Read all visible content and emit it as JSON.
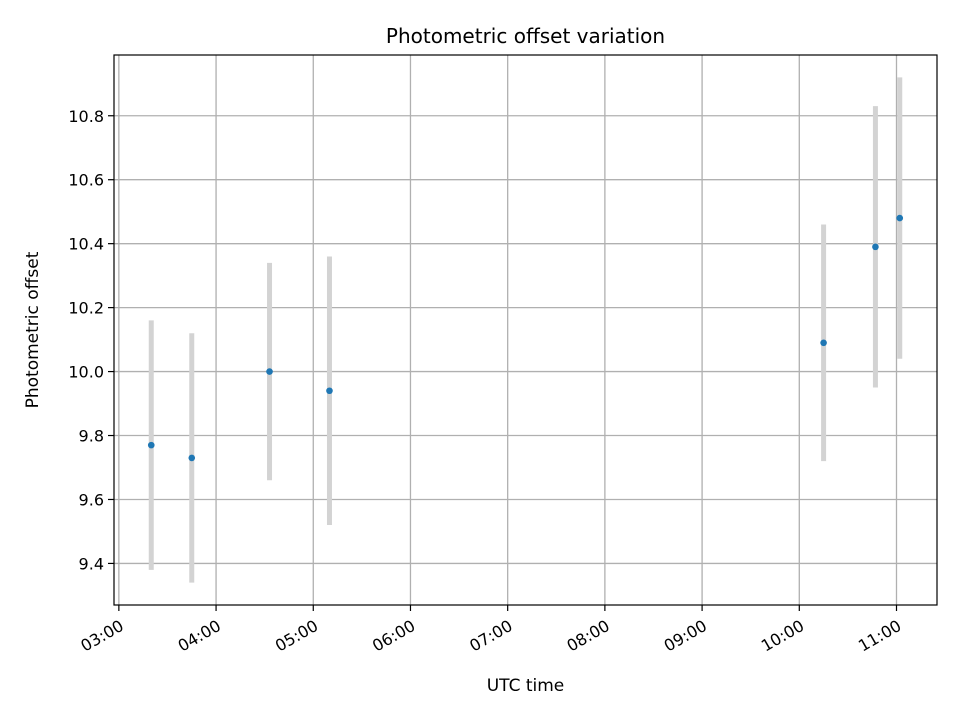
{
  "chart_data": {
    "type": "scatter",
    "title": "Photometric offset variation",
    "xlabel": "UTC time",
    "ylabel": "Photometric offset",
    "x_ticks": [
      "03:00",
      "04:00",
      "05:00",
      "06:00",
      "07:00",
      "08:00",
      "09:00",
      "10:00",
      "11:00"
    ],
    "y_ticks": [
      "9.4",
      "9.6",
      "9.8",
      "10.0",
      "10.2",
      "10.4",
      "10.6",
      "10.8"
    ],
    "xlim": [
      "02:57",
      "11:25"
    ],
    "ylim": [
      9.27,
      10.99
    ],
    "grid": true,
    "points": [
      {
        "time": "03:20",
        "value": 9.77,
        "err": 0.39
      },
      {
        "time": "03:45",
        "value": 9.73,
        "err": 0.39
      },
      {
        "time": "04:33",
        "value": 10.0,
        "err": 0.34
      },
      {
        "time": "05:10",
        "value": 9.94,
        "err": 0.42
      },
      {
        "time": "10:15",
        "value": 10.09,
        "err": 0.37
      },
      {
        "time": "10:47",
        "value": 10.39,
        "err": 0.44
      },
      {
        "time": "11:02",
        "value": 10.48,
        "err": 0.44
      }
    ],
    "colors": {
      "point": "#1f77b4",
      "errorbar": "#d3d3d3",
      "grid": "#b0b0b0",
      "axes": "#000000"
    }
  }
}
